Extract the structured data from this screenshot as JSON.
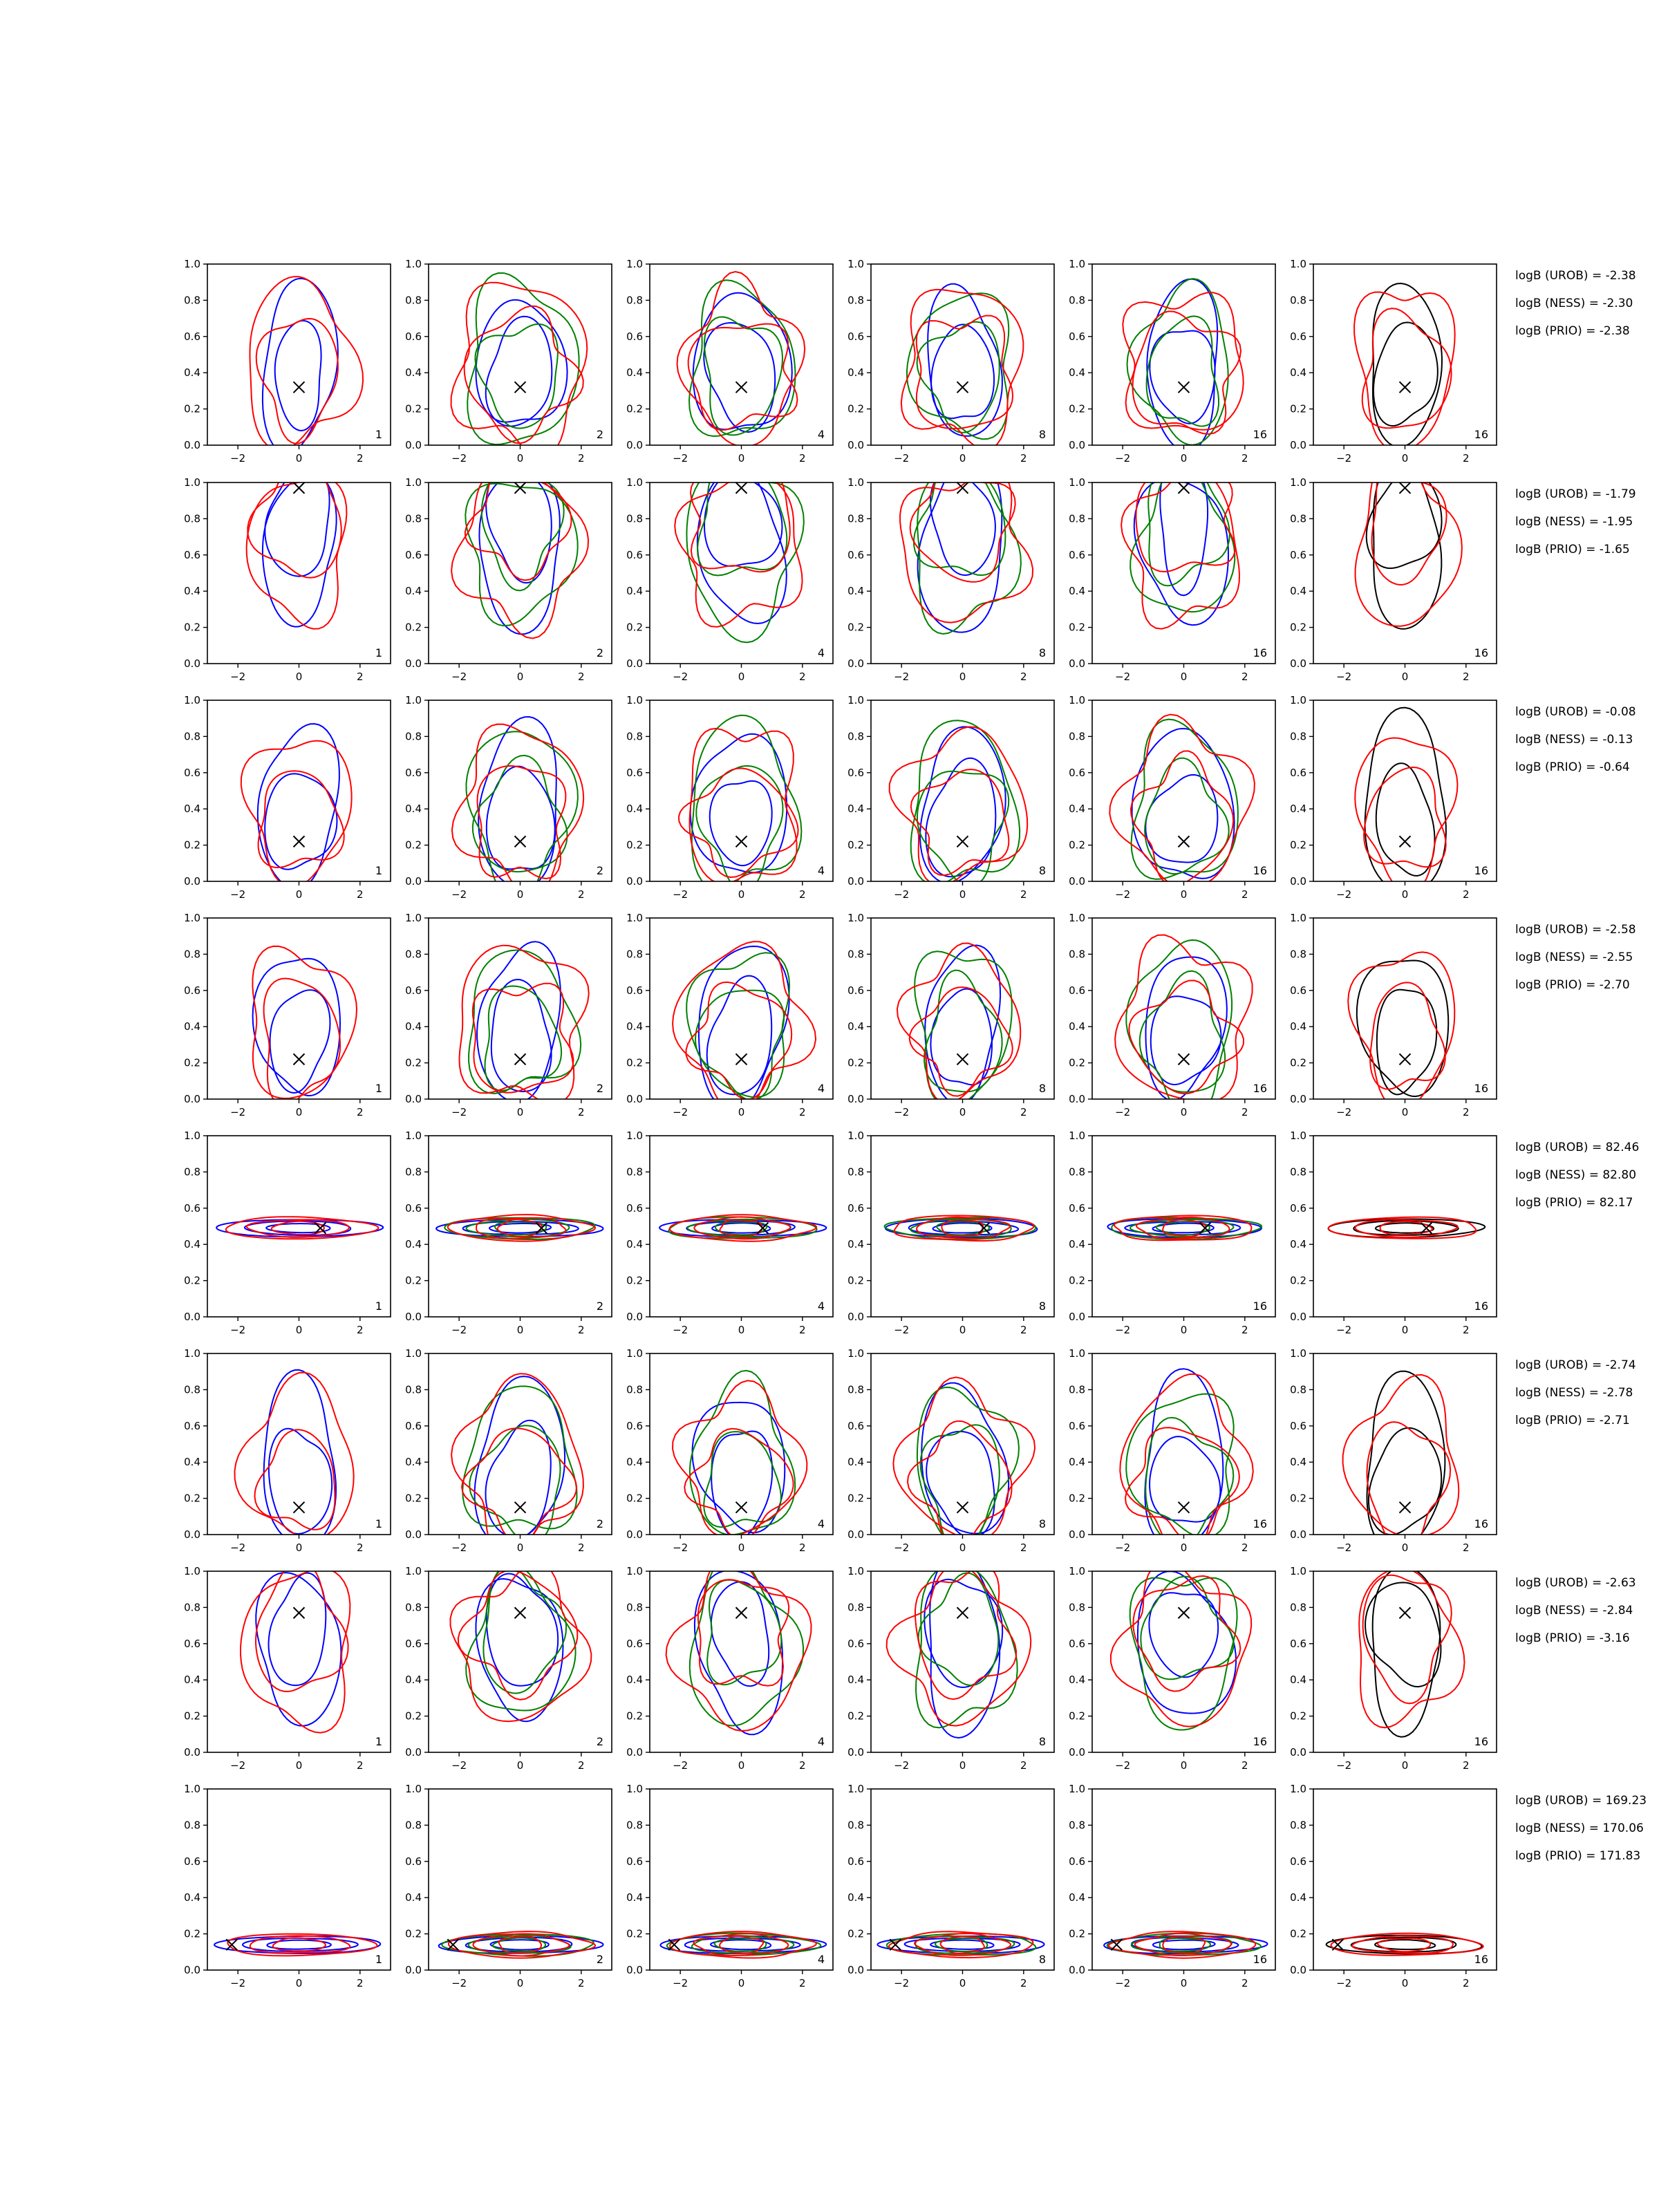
{
  "colors": {
    "blue": "#0000ff",
    "green": "#008000",
    "red": "#ff0000",
    "black": "#000000"
  },
  "chart_data": {
    "type": "contour-grid",
    "rows": 8,
    "cols": 6,
    "x_ticks": [
      -2,
      0,
      2
    ],
    "y_ticks": [
      "0.0",
      "0.2",
      "0.4",
      "0.6",
      "0.8",
      "1.0"
    ],
    "xlim": [
      -3,
      3
    ],
    "ylim": [
      0,
      1
    ],
    "column_labels": [
      "1",
      "2",
      "4",
      "8",
      "16",
      "16"
    ],
    "column_series": [
      [
        "blue",
        "red"
      ],
      [
        "blue",
        "green",
        "red"
      ],
      [
        "blue",
        "green",
        "red"
      ],
      [
        "blue",
        "green",
        "red"
      ],
      [
        "blue",
        "green",
        "red"
      ],
      [
        "black",
        "red"
      ]
    ],
    "rows_data": [
      {
        "marker": [
          0,
          0.32
        ],
        "logB": {
          "UROB": "logB (UROB) = -2.38",
          "NESS": "logB (NESS) = -2.30",
          "PRIO": "logB (PRIO) = -2.38"
        }
      },
      {
        "marker": [
          0,
          0.97
        ],
        "logB": {
          "UROB": "logB (UROB) = -1.79",
          "NESS": "logB (NESS) = -1.95",
          "PRIO": "logB (PRIO) = -1.65"
        }
      },
      {
        "marker": [
          0,
          0.22
        ],
        "logB": {
          "UROB": "logB (UROB) = -0.08",
          "NESS": "logB (NESS) = -0.13",
          "PRIO": "logB (PRIO) = -0.64"
        }
      },
      {
        "marker": [
          0,
          0.22
        ],
        "logB": {
          "UROB": "logB (UROB) = -2.58",
          "NESS": "logB (NESS) = -2.55",
          "PRIO": "logB (PRIO) = -2.70"
        }
      },
      {
        "marker": [
          0.7,
          0.49
        ],
        "logB": {
          "UROB": "logB (UROB) = 82.46",
          "NESS": "logB (NESS) = 82.80",
          "PRIO": "logB (PRIO) = 82.17"
        }
      },
      {
        "marker": [
          0,
          0.15
        ],
        "logB": {
          "UROB": "logB (UROB) = -2.74",
          "NESS": "logB (NESS) = -2.78",
          "PRIO": "logB (PRIO) = -2.71"
        }
      },
      {
        "marker": [
          0,
          0.77
        ],
        "logB": {
          "UROB": "logB (UROB) = -2.63",
          "NESS": "logB (NESS) = -2.84",
          "PRIO": "logB (PRIO) = -3.16"
        }
      },
      {
        "marker": [
          -2.2,
          0.14
        ],
        "logB": {
          "UROB": "logB (UROB) = 169.23",
          "NESS": "logB (NESS) = 170.06",
          "PRIO": "logB (PRIO) = 171.83"
        }
      }
    ]
  }
}
